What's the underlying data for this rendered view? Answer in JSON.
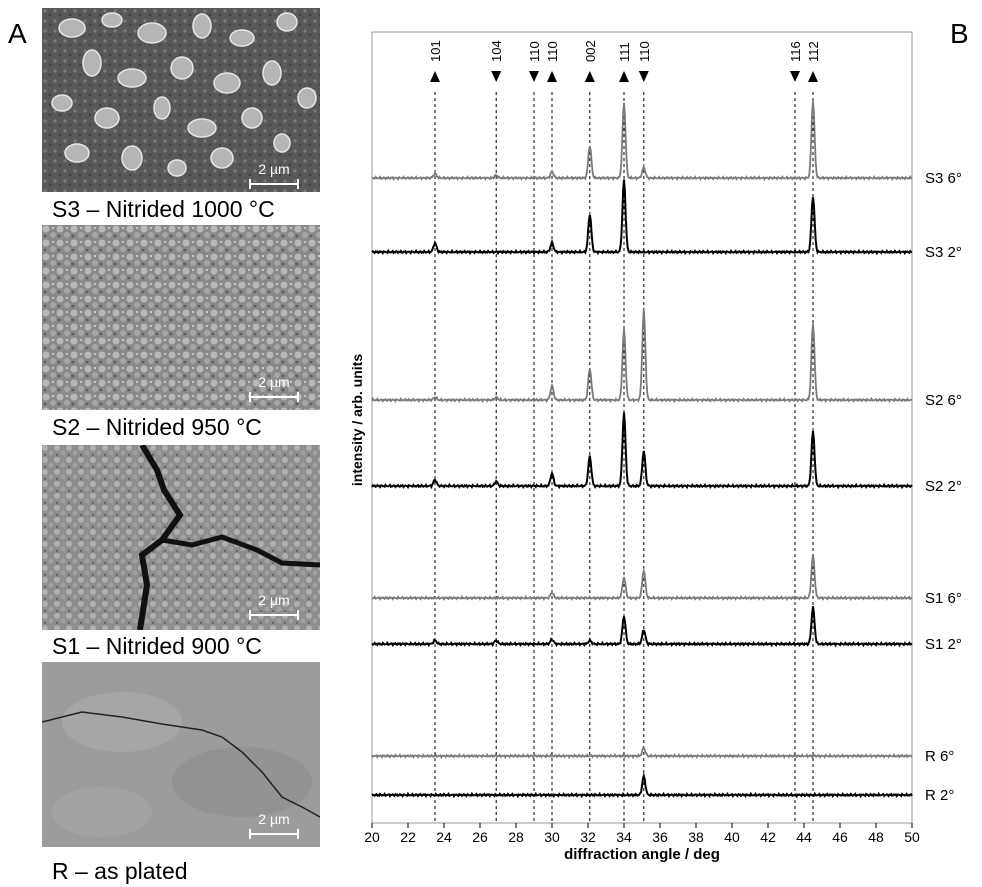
{
  "panel_a_label": "A",
  "panel_b_label": "B",
  "sem_images": [
    {
      "caption": "S3 – Nitrided 1000 °C",
      "scale_bar": "2 µm"
    },
    {
      "caption": "S2 – Nitrided 950 °C",
      "scale_bar": "2 µm"
    },
    {
      "caption": "S1 – Nitrided 900 °C",
      "scale_bar": "2 µm"
    },
    {
      "caption": "R – as plated",
      "scale_bar": "2 µm"
    }
  ],
  "chart_data": {
    "type": "line",
    "xlabel": "diffraction angle / deg",
    "ylabel": "intensity / arb. units",
    "xlim": [
      20,
      50
    ],
    "xticks": [
      20,
      22,
      24,
      26,
      28,
      30,
      32,
      34,
      36,
      38,
      40,
      42,
      44,
      46,
      48,
      50
    ],
    "grid": false,
    "reference_lines": [
      {
        "x": 23.5,
        "label": "101",
        "marker": "up"
      },
      {
        "x": 26.9,
        "label": "104",
        "marker": "down"
      },
      {
        "x": 29.0,
        "label": "110",
        "marker": "down"
      },
      {
        "x": 30.0,
        "label": "110",
        "marker": "up"
      },
      {
        "x": 32.1,
        "label": "002",
        "marker": "up"
      },
      {
        "x": 34.0,
        "label": "111",
        "marker": "up"
      },
      {
        "x": 35.1,
        "label": "110",
        "marker": "down"
      },
      {
        "x": 43.5,
        "label": "116",
        "marker": "down"
      },
      {
        "x": 44.5,
        "label": "112",
        "marker": "up"
      }
    ],
    "series": [
      {
        "name": "S3  6°",
        "color": "#7a7a7a",
        "peaks": [
          [
            23.5,
            0.05
          ],
          [
            26.9,
            0.03
          ],
          [
            30.0,
            0.07
          ],
          [
            32.1,
            0.36
          ],
          [
            34.0,
            0.84
          ],
          [
            35.1,
            0.12
          ],
          [
            44.5,
            0.86
          ]
        ]
      },
      {
        "name": "S3  2°",
        "color": "#000000",
        "peaks": [
          [
            23.5,
            0.1
          ],
          [
            30.0,
            0.1
          ],
          [
            32.1,
            0.42
          ],
          [
            34.0,
            0.8
          ],
          [
            44.5,
            0.62
          ]
        ]
      },
      {
        "name": "S2  6°",
        "color": "#7a7a7a",
        "peaks": [
          [
            23.5,
            0.03
          ],
          [
            26.9,
            0.03
          ],
          [
            30.0,
            0.16
          ],
          [
            32.1,
            0.35
          ],
          [
            34.0,
            0.78
          ],
          [
            35.1,
            1.0
          ],
          [
            44.5,
            0.86
          ]
        ]
      },
      {
        "name": "S2  2°",
        "color": "#000000",
        "peaks": [
          [
            23.5,
            0.07
          ],
          [
            26.9,
            0.05
          ],
          [
            30.0,
            0.14
          ],
          [
            32.1,
            0.33
          ],
          [
            34.0,
            0.81
          ],
          [
            35.1,
            0.39
          ],
          [
            44.5,
            0.61
          ]
        ]
      },
      {
        "name": "S1  6°",
        "color": "#7a7a7a",
        "peaks": [
          [
            30.0,
            0.06
          ],
          [
            34.0,
            0.23
          ],
          [
            35.1,
            0.31
          ],
          [
            44.5,
            0.48
          ]
        ]
      },
      {
        "name": "S1  2°",
        "color": "#000000",
        "peaks": [
          [
            23.5,
            0.04
          ],
          [
            26.9,
            0.04
          ],
          [
            30.0,
            0.05
          ],
          [
            32.1,
            0.04
          ],
          [
            34.0,
            0.31
          ],
          [
            35.1,
            0.16
          ],
          [
            44.5,
            0.41
          ]
        ]
      },
      {
        "name": "R 6°",
        "color": "#7a7a7a",
        "peaks": [
          [
            35.1,
            0.09
          ]
        ]
      },
      {
        "name": "R 2°",
        "color": "#000000",
        "peaks": [
          [
            35.1,
            0.21
          ]
        ]
      }
    ]
  }
}
